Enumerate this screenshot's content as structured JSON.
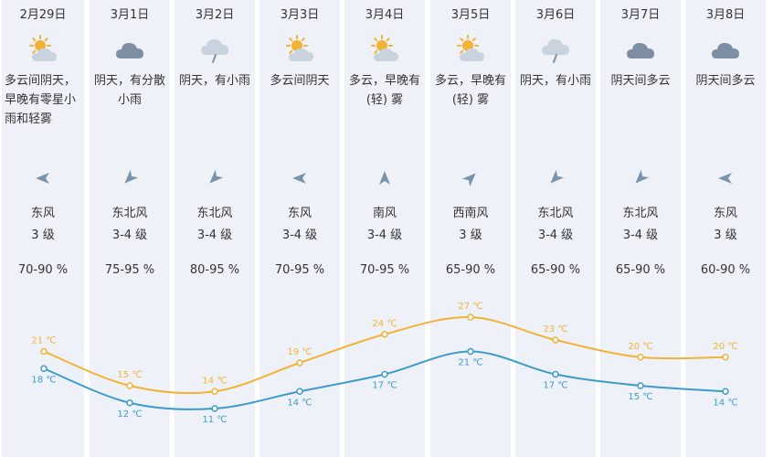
{
  "days": [
    {
      "date": "2月29日",
      "icon": "partly-cloudy-icon",
      "desc": "多云间阴天，早晚有零星小雨和轻雾",
      "wind_dir": "东风",
      "wind_level": "3 级",
      "humidity": "70-90 %",
      "high": 21,
      "low": 18,
      "high_label": "21 ℃",
      "low_label": "18 ℃",
      "arrow_deg": 270
    },
    {
      "date": "3月1日",
      "icon": "cloudy-icon",
      "desc": "阴天，有分散小雨",
      "wind_dir": "东北风",
      "wind_level": "3-4 级",
      "humidity": "75-95 %",
      "high": 15,
      "low": 12,
      "high_label": "15 ℃",
      "low_label": "12 ℃",
      "arrow_deg": 225
    },
    {
      "date": "3月2日",
      "icon": "light-rain-icon",
      "desc": "阴天，有小雨",
      "wind_dir": "东北风",
      "wind_level": "3-4 级",
      "humidity": "80-95 %",
      "high": 14,
      "low": 11,
      "high_label": "14 ℃",
      "low_label": "11 ℃",
      "arrow_deg": 225
    },
    {
      "date": "3月3日",
      "icon": "partly-cloudy-icon",
      "desc": "多云间阴天",
      "wind_dir": "东风",
      "wind_level": "3-4 级",
      "humidity": "70-95 %",
      "high": 19,
      "low": 14,
      "high_label": "19 ℃",
      "low_label": "14 ℃",
      "arrow_deg": 270
    },
    {
      "date": "3月4日",
      "icon": "partly-cloudy-icon",
      "desc": "多云，早晚有(轻) 雾",
      "wind_dir": "南风",
      "wind_level": "3-4 级",
      "humidity": "70-95 %",
      "high": 24,
      "low": 17,
      "high_label": "24 ℃",
      "low_label": "17 ℃",
      "arrow_deg": 0
    },
    {
      "date": "3月5日",
      "icon": "partly-cloudy-icon",
      "desc": "多云，早晚有(轻) 雾",
      "wind_dir": "西南风",
      "wind_level": "3 级",
      "humidity": "65-90 %",
      "high": 27,
      "low": 21,
      "high_label": "27 ℃",
      "low_label": "21 ℃",
      "arrow_deg": 45
    },
    {
      "date": "3月6日",
      "icon": "light-rain-icon",
      "desc": "阴天，有小雨",
      "wind_dir": "东北风",
      "wind_level": "3-4 级",
      "humidity": "65-90 %",
      "high": 23,
      "low": 17,
      "high_label": "23 ℃",
      "low_label": "17 ℃",
      "arrow_deg": 225
    },
    {
      "date": "3月7日",
      "icon": "cloudy-icon",
      "desc": "阴天间多云",
      "wind_dir": "东北风",
      "wind_level": "3-4 级",
      "humidity": "65-90 %",
      "high": 20,
      "low": 15,
      "high_label": "20 ℃",
      "low_label": "15 ℃",
      "arrow_deg": 225
    },
    {
      "date": "3月8日",
      "icon": "cloudy-icon",
      "desc": "阴天间多云",
      "wind_dir": "东风",
      "wind_level": "3 级",
      "humidity": "60-90 %",
      "high": 20,
      "low": 14,
      "high_label": "20 ℃",
      "low_label": "14 ℃",
      "arrow_deg": 270
    }
  ],
  "colors": {
    "high_line": "#f2b233",
    "low_line": "#3d9bc9",
    "column_bg": "#eef2f8",
    "cloud": "#7e8fa3",
    "sun": "#f2b233"
  }
}
